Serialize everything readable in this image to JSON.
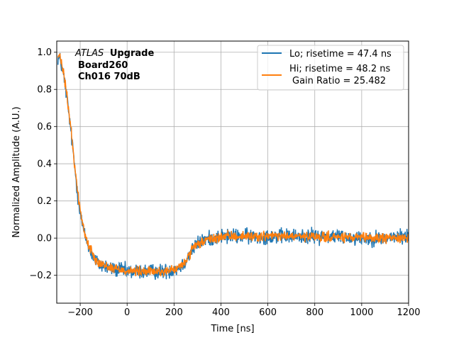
{
  "chart_data": {
    "type": "line",
    "title": "",
    "xlabel": "Time [ns]",
    "ylabel": "Normalized Amplitude (A.U.)",
    "xlim": [
      -300,
      1200
    ],
    "ylim": [
      -0.35,
      1.06
    ],
    "xticks": [
      -200,
      0,
      200,
      400,
      600,
      800,
      1000,
      1200
    ],
    "xtick_labels": [
      "−200",
      "0",
      "200",
      "400",
      "600",
      "800",
      "1000",
      "1200"
    ],
    "yticks": [
      -0.2,
      0.0,
      0.2,
      0.4,
      0.6,
      0.8,
      1.0
    ],
    "ytick_labels": [
      "−0.2",
      "0.0",
      "0.2",
      "0.4",
      "0.6",
      "0.8",
      "1.0"
    ],
    "grid": true,
    "legend_position": "top-right",
    "annotation": {
      "line1_italic": "ATLAS",
      "line1_bold": "Upgrade",
      "line2": "Board260",
      "line3": "Ch016 70dB"
    },
    "series": [
      {
        "name": "Lo",
        "legend_label": "Lo; risetime = 47.4 ns",
        "color": "#1f77b4",
        "noise_amplitude": 0.028,
        "x": [
          -295,
          -285,
          -270,
          -255,
          -240,
          -225,
          -210,
          -195,
          -180,
          -160,
          -140,
          -120,
          -100,
          -80,
          -50,
          -20,
          0,
          50,
          100,
          150,
          180,
          200,
          220,
          240,
          260,
          280,
          300,
          330,
          360,
          400,
          450,
          500,
          600,
          700,
          800,
          900,
          1000,
          1100,
          1200
        ],
        "y": [
          0.97,
          0.96,
          0.87,
          0.74,
          0.58,
          0.4,
          0.23,
          0.1,
          0.01,
          -0.06,
          -0.11,
          -0.14,
          -0.15,
          -0.16,
          -0.17,
          -0.17,
          -0.18,
          -0.18,
          -0.18,
          -0.18,
          -0.175,
          -0.17,
          -0.16,
          -0.14,
          -0.1,
          -0.06,
          -0.03,
          -0.01,
          0.0,
          0.01,
          0.01,
          0.01,
          0.01,
          0.01,
          0.01,
          0.01,
          0.0,
          0.0,
          0.01
        ]
      },
      {
        "name": "Hi",
        "legend_label": "Hi; risetime = 48.2 ns",
        "legend_label_2": "Gain Ratio = 25.482",
        "color": "#ff7f0e",
        "noise_amplitude": 0.018,
        "x": [
          -295,
          -285,
          -270,
          -255,
          -240,
          -225,
          -210,
          -195,
          -180,
          -160,
          -140,
          -120,
          -100,
          -80,
          -50,
          -20,
          0,
          50,
          100,
          150,
          180,
          200,
          220,
          240,
          260,
          280,
          300,
          330,
          360,
          400,
          450,
          500,
          600,
          700,
          800,
          900,
          1000,
          1100,
          1200
        ],
        "y": [
          0.98,
          0.97,
          0.88,
          0.75,
          0.59,
          0.41,
          0.24,
          0.11,
          0.02,
          -0.05,
          -0.1,
          -0.13,
          -0.145,
          -0.155,
          -0.165,
          -0.17,
          -0.175,
          -0.18,
          -0.18,
          -0.18,
          -0.175,
          -0.17,
          -0.16,
          -0.14,
          -0.1,
          -0.06,
          -0.035,
          -0.015,
          -0.005,
          0.005,
          0.01,
          0.01,
          0.01,
          0.01,
          0.005,
          0.005,
          0.0,
          0.0,
          0.005
        ]
      }
    ]
  }
}
